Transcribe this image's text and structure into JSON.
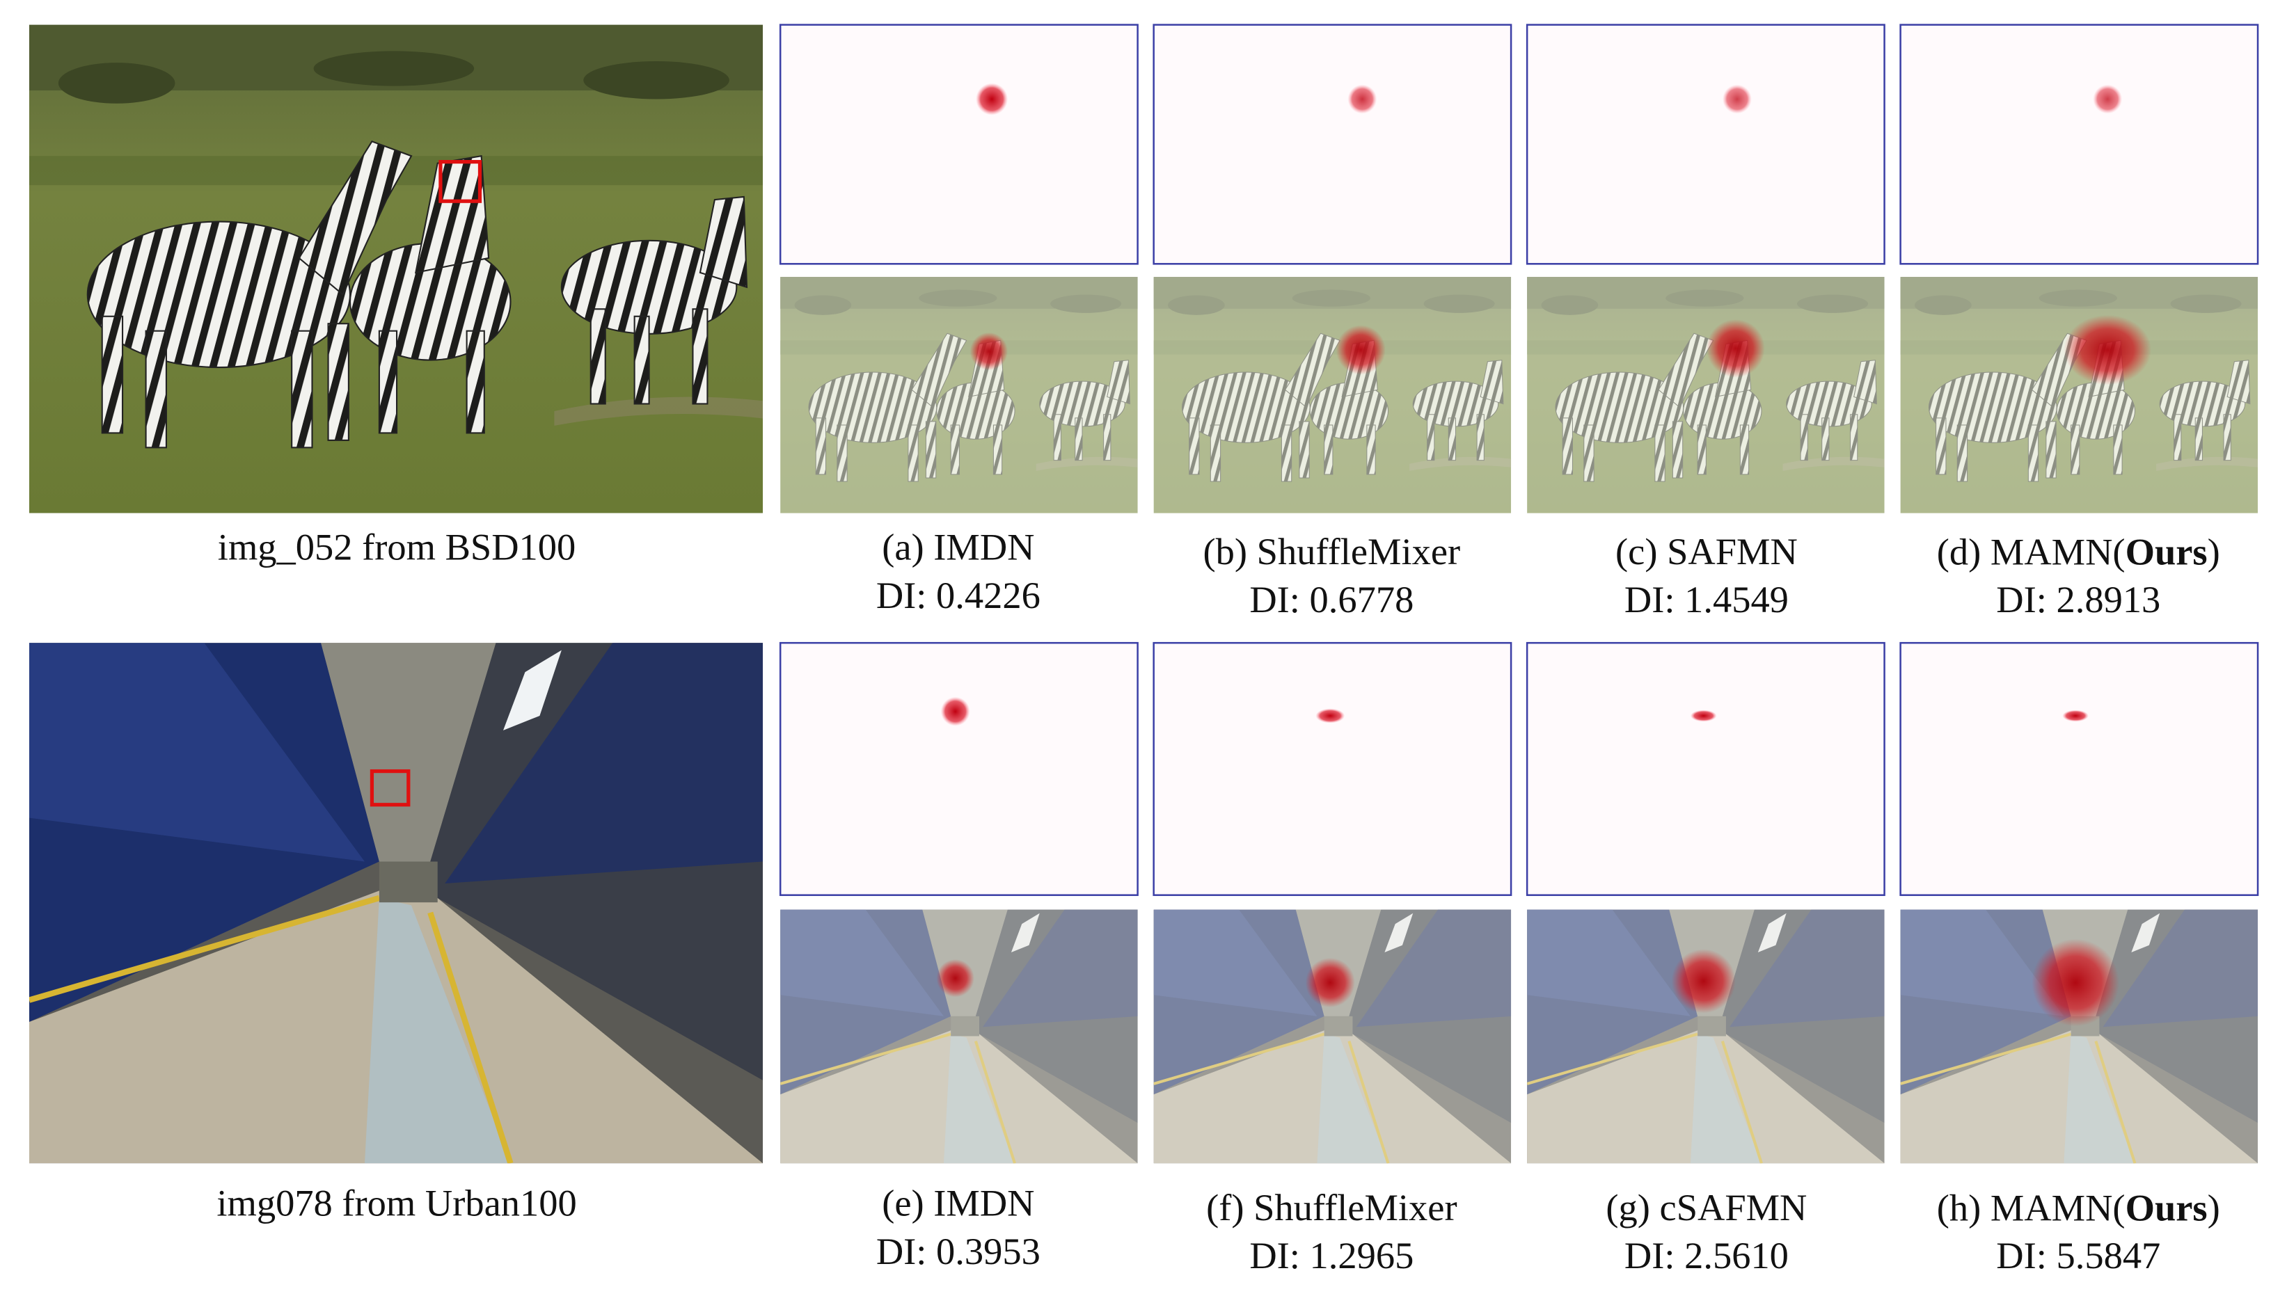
{
  "rows": [
    {
      "source": {
        "caption": "img_052 from BSD100"
      },
      "methods": [
        {
          "label": "(a) IMDN",
          "score": "DI: 0.4226"
        },
        {
          "label": "(b) ShuffleMixer",
          "score": "DI: 0.6778"
        },
        {
          "label": "(c) SAFMN",
          "score": "DI: 1.4549"
        },
        {
          "label": "(d) MAMN(",
          "label_bold": "Ours",
          "label_end": ")",
          "score": "DI: 2.8913"
        }
      ]
    },
    {
      "source": {
        "caption": "img078 from Urban100"
      },
      "methods": [
        {
          "label": "(e) IMDN",
          "score": "DI: 0.3953"
        },
        {
          "label": "(f) ShuffleMixer",
          "score": "DI: 1.2965"
        },
        {
          "label": "(g) cSAFMN",
          "score": "DI: 2.5610"
        },
        {
          "label": "(h) MAMN(",
          "label_bold": "Ours",
          "label_end": ")",
          "score": "DI: 5.5847"
        }
      ]
    }
  ]
}
